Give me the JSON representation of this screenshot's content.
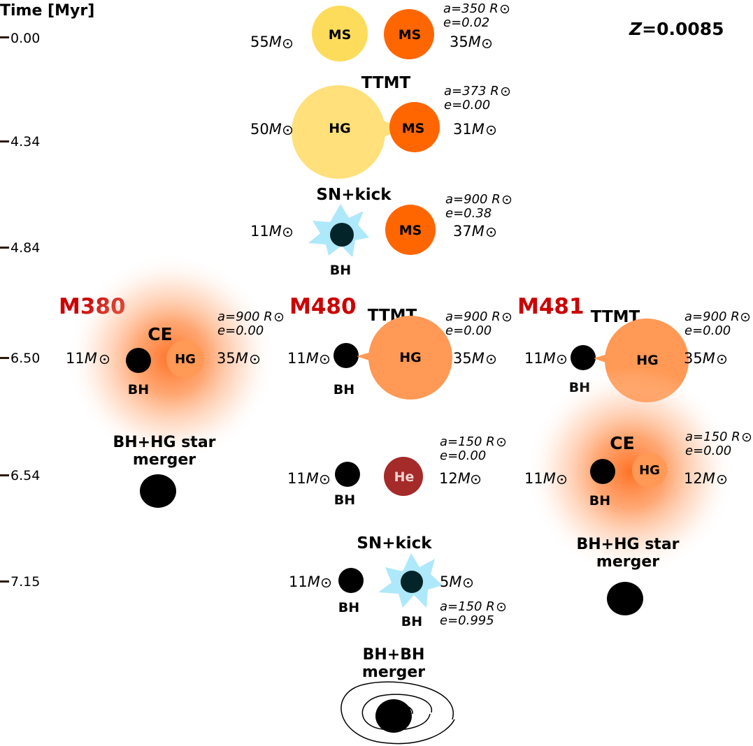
{
  "time_axis": {
    "title": "Time [Myr]",
    "ticks": [
      "0.00",
      "4.34",
      "4.84",
      "6.50",
      "6.54",
      "7.15"
    ]
  },
  "metallicity": {
    "prefix": "Z",
    "value": "=0.0085"
  },
  "colors": {
    "ms_yellow": "#fddc5c",
    "ms_orange": "#ff6600",
    "hg_yellow": "#ffe07a",
    "hg_orange": "#ff9955",
    "he": "#a52a2a",
    "bh": "#000000",
    "sn": "#aee8fb",
    "model_red": "#cc0000"
  },
  "units": {
    "msun": "M",
    "rsun": "R"
  },
  "stage0": {
    "left_star": "MS",
    "right_star": "MS",
    "left_mass": "55",
    "right_mass": "35",
    "a": "a=350",
    "e": "e=0.02"
  },
  "stage1": {
    "event": "TTMT",
    "left_star": "HG",
    "right_star": "MS",
    "left_mass": "50",
    "right_mass": "31",
    "a": "a=373",
    "e": "e=0.00"
  },
  "stage2": {
    "event": "SN+kick",
    "left_star": "BH",
    "right_star": "MS",
    "left_mass": "11",
    "right_mass": "37",
    "a": "a=900",
    "e": "e=0.38"
  },
  "m380": {
    "title": "M380",
    "event": "CE",
    "left_star": "BH",
    "right_star": "HG",
    "left_mass": "11",
    "right_mass": "35",
    "a": "a=900",
    "e": "e=0.00",
    "merger_line1": "BH+HG star",
    "merger_line2": "merger"
  },
  "m480": {
    "title": "M480",
    "event": "TTMT",
    "left_star": "BH",
    "right_star": "HG",
    "left_mass": "11",
    "right_mass": "35",
    "a": "a=900",
    "e": "e=0.00",
    "stage_he": {
      "left_star": "BH",
      "right_star": "He",
      "left_mass": "11",
      "right_mass": "12",
      "a": "a=150",
      "e": "e=0.00"
    },
    "stage_sn": {
      "event": "SN+kick",
      "left_star": "BH",
      "right_star": "BH",
      "left_mass": "11",
      "right_mass": "5",
      "a": "a=150",
      "e": "e=0.995"
    },
    "merger_line1": "BH+BH",
    "merger_line2": "merger"
  },
  "m481": {
    "title": "M481",
    "event": "TTMT",
    "left_star": "BH",
    "right_star": "HG",
    "left_mass": "11",
    "right_mass": "35",
    "a": "a=900",
    "e": "e=0.00",
    "stage_ce": {
      "event": "CE",
      "left_star": "BH",
      "right_star": "HG",
      "left_mass": "11",
      "right_mass": "12",
      "a": "a=150",
      "e": "e=0.00"
    },
    "merger_line1": "BH+HG star",
    "merger_line2": "merger"
  }
}
